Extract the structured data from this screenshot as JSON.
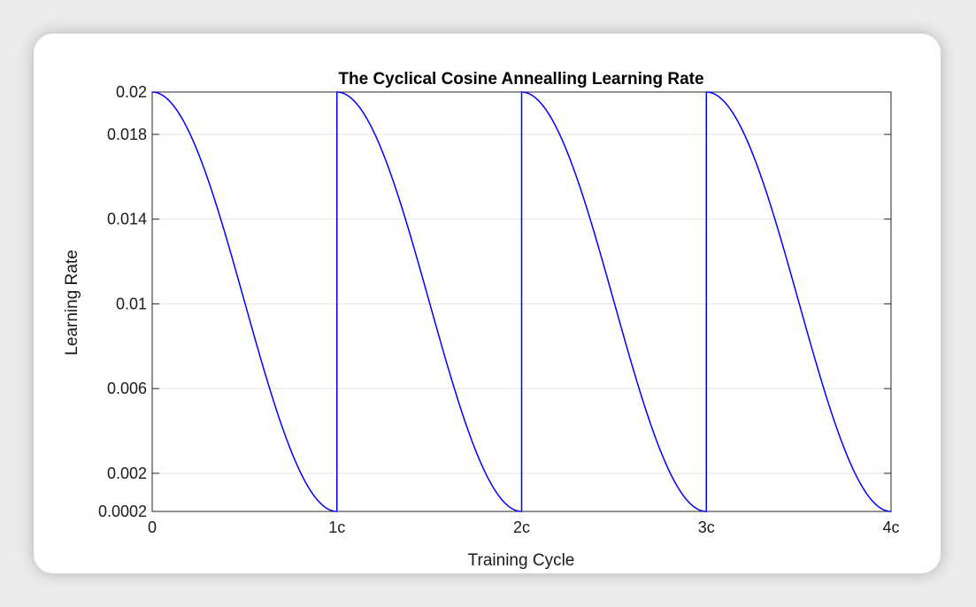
{
  "chart_data": {
    "type": "line",
    "title": "The Cyclical Cosine Annealling Learning Rate",
    "xlabel": "Training Cycle",
    "ylabel": "Learning Rate",
    "xlim": [
      0,
      4
    ],
    "ylim": [
      0.0002,
      0.02
    ],
    "xticks": [
      {
        "value": 0,
        "label": "0"
      },
      {
        "value": 1,
        "label": "1c"
      },
      {
        "value": 2,
        "label": "2c"
      },
      {
        "value": 3,
        "label": "3c"
      },
      {
        "value": 4,
        "label": "4c"
      }
    ],
    "yticks": [
      {
        "value": 0.0002,
        "label": "0.0002"
      },
      {
        "value": 0.002,
        "label": "0.002"
      },
      {
        "value": 0.006,
        "label": "0.006"
      },
      {
        "value": 0.01,
        "label": "0.01"
      },
      {
        "value": 0.014,
        "label": "0.014"
      },
      {
        "value": 0.018,
        "label": "0.018"
      },
      {
        "value": 0.02,
        "label": "0.02"
      }
    ],
    "grid": true,
    "series": [
      {
        "color": "#0000ff",
        "cycles": 4,
        "lr_max": 0.02,
        "lr_min": 0.0002,
        "x": [
          0,
          0.1,
          0.2,
          0.3,
          0.4,
          0.5,
          0.6,
          0.7,
          0.8,
          0.9,
          1.0,
          1.1,
          1.2,
          1.3,
          1.4,
          1.5,
          1.6,
          1.7,
          1.8,
          1.9,
          2.0,
          2.1,
          2.2,
          2.3,
          2.4,
          2.5,
          2.6,
          2.7,
          2.8,
          2.9,
          3.0,
          3.1,
          3.2,
          3.3,
          3.4,
          3.5,
          3.6,
          3.7,
          3.8,
          3.9,
          4.0
        ],
        "y": [
          0.02,
          0.0195,
          0.0181,
          0.0159,
          0.0132,
          0.0101,
          0.007,
          0.0043,
          0.0021,
          0.0007,
          0.0002,
          0.0195,
          0.0181,
          0.0159,
          0.0132,
          0.0101,
          0.007,
          0.0043,
          0.0021,
          0.0007,
          0.0002,
          0.0195,
          0.0181,
          0.0159,
          0.0132,
          0.0101,
          0.007,
          0.0043,
          0.0021,
          0.0007,
          0.0002,
          0.0195,
          0.0181,
          0.0159,
          0.0132,
          0.0101,
          0.007,
          0.0043,
          0.0021,
          0.0007,
          0.0002
        ]
      }
    ]
  }
}
